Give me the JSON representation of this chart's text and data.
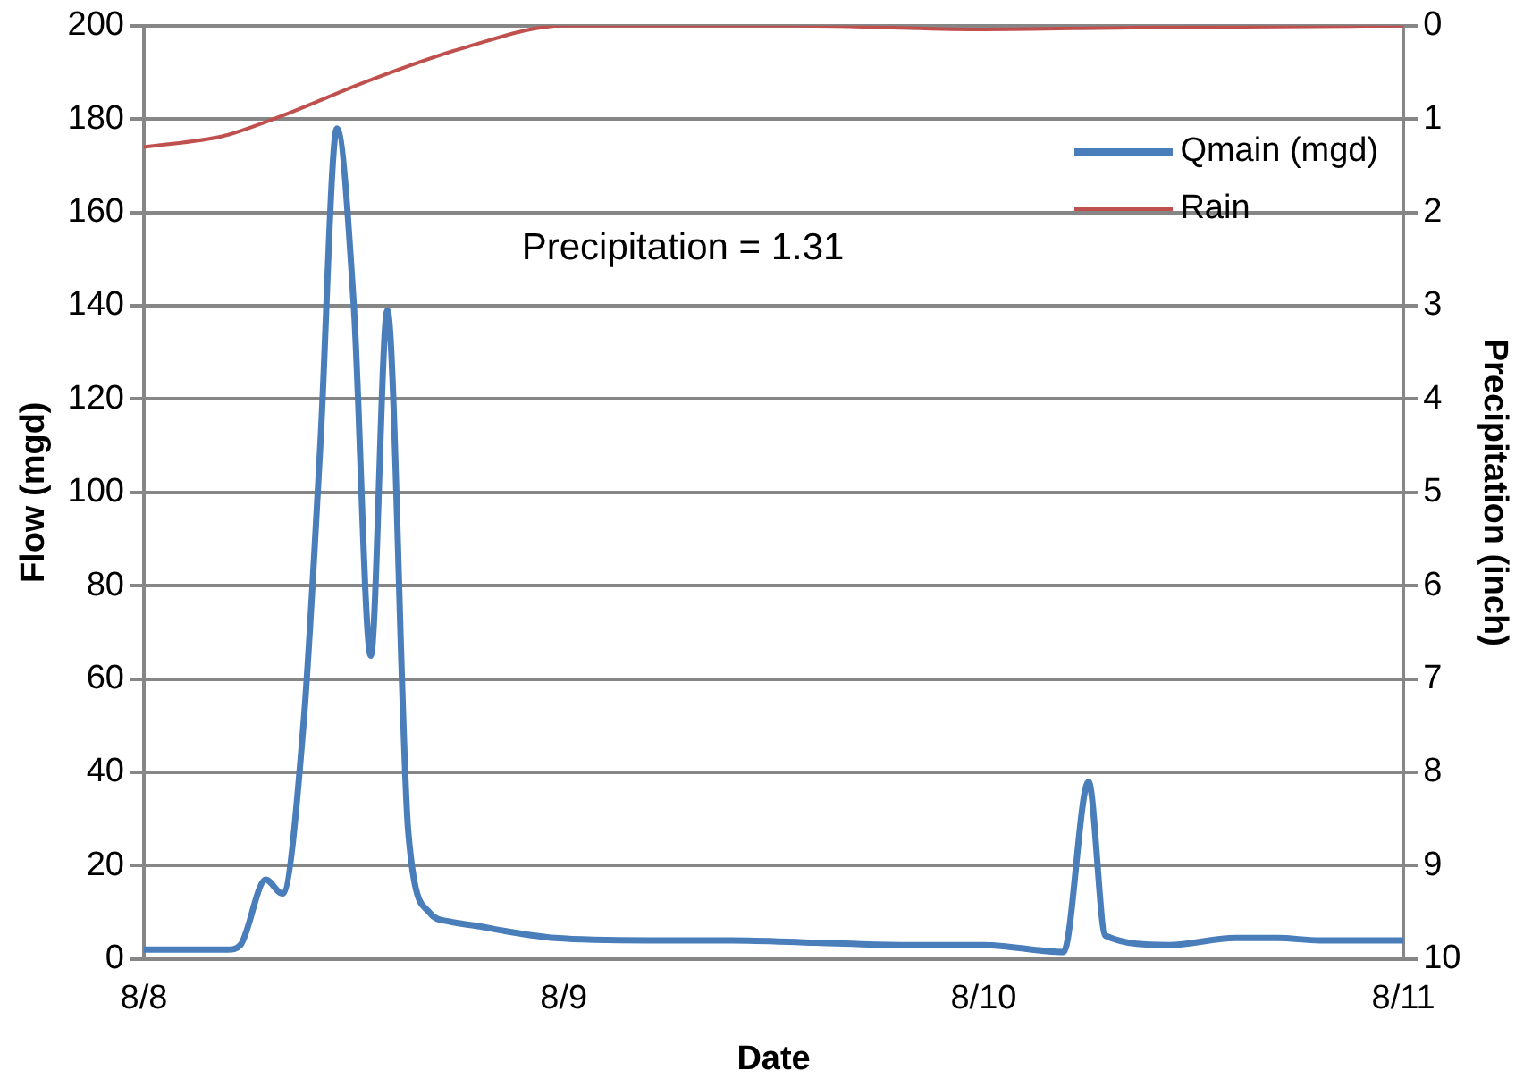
{
  "chart_data": {
    "type": "line",
    "xlabel": "Date",
    "ylabel": "Flow (mgd)",
    "y2label": "Precipitation (inch)",
    "xlim": [
      "--08-08",
      "--08-11"
    ],
    "xticks": [
      {
        "value": "--08-08",
        "label": "8/8"
      },
      {
        "value": "--08-09",
        "label": "8/9"
      },
      {
        "value": "--08-10",
        "label": "8/10"
      },
      {
        "value": "--08-11",
        "label": "8/11"
      }
    ],
    "ylim": [
      0,
      200
    ],
    "yticks": [
      0,
      20,
      40,
      60,
      80,
      100,
      120,
      140,
      160,
      180,
      200
    ],
    "y2lim": [
      10,
      0
    ],
    "y2ticks": [
      0,
      1,
      2,
      3,
      4,
      5,
      6,
      7,
      8,
      9,
      10
    ],
    "grid": "y",
    "legend": "top right",
    "marker": "none",
    "line_style": "solid",
    "annotations": [
      "Precipitation = 1.31"
    ],
    "series": [
      {
        "name": "Qmain (mgd)",
        "color": "#4a7ebb",
        "x": [
          "--08-08T00:00",
          "--08-08T02:53",
          "--08-08T04:48",
          "--08-08T05:31",
          "--08-08T06:58",
          "--08-08T07:55",
          "--08-08T09:07",
          "--08-08T10:05",
          "--08-08T11:02",
          "--08-08T12:00",
          "--08-08T12:58",
          "--08-08T13:55",
          "--08-08T15:07",
          "--08-08T16:19",
          "--08-08T17:31",
          "--08-08T19:12",
          "--08-08T20:38",
          "--08-08T23:31",
          "--08-09T04:48",
          "--08-09T09:36",
          "--08-09T14:24",
          "--08-09T19:12",
          "--08-10T00:00",
          "--08-10T04:34",
          "--08-10T06:00",
          "--08-10T06:58",
          "--08-10T10:34",
          "--08-10T14:24",
          "--08-10T16:48",
          "--08-10T19:12",
          "--08-11T00:00"
        ],
        "values": [
          2,
          2,
          2,
          3,
          17,
          14,
          50,
          110,
          178,
          140,
          65,
          139,
          27,
          10,
          8,
          7,
          6,
          4.5,
          4,
          4,
          3.5,
          3,
          3,
          1.5,
          38,
          5,
          3,
          4.5,
          4.5,
          4,
          4
        ]
      },
      {
        "name": "Rain",
        "color": "#c0504d",
        "axis": "y2",
        "x": [
          "--08-08T00:00",
          "--08-08T04:34",
          "--08-08T07:41",
          "--08-08T12:58",
          "--08-08T18:14",
          "--08-09T00:00",
          "--08-09T13:26",
          "--08-10T00:00",
          "--08-10T08:24",
          "--08-11T00:00"
        ],
        "values": [
          1.3,
          1.18,
          0.98,
          0.58,
          0.24,
          0,
          0,
          0.04,
          0.02,
          0
        ]
      }
    ]
  }
}
